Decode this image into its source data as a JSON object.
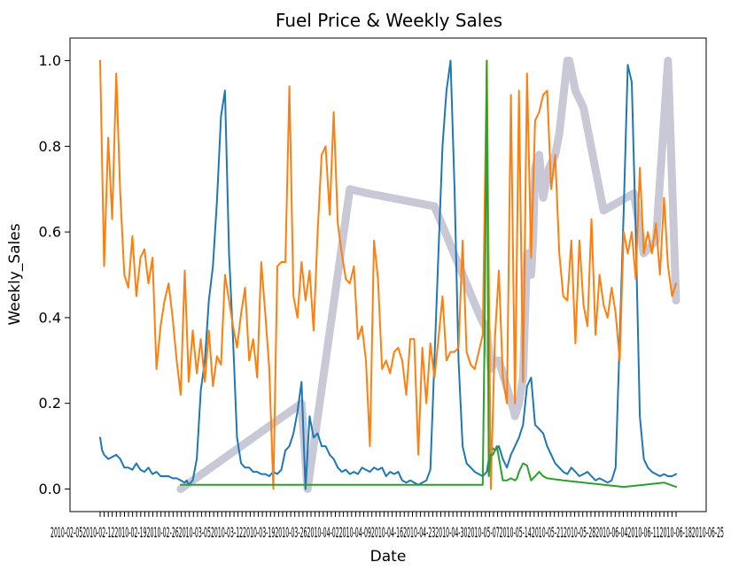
{
  "chart_data": {
    "type": "line",
    "title": "Fuel Price & Weekly Sales",
    "xlabel": "Date",
    "ylabel": "Weekly_Sales",
    "ylim": [
      -0.03,
      1.05
    ],
    "yticks": [
      "0.0",
      "0.2",
      "0.4",
      "0.6",
      "0.8",
      "1.0"
    ],
    "x_tick_count": 143,
    "x_tick_label_text": "2010-02-052010-02-122010-02-192010-02-262010-03-052010-03-122010-03-192010-03-262010-04-022010-04-092010-04-162010-04-232010-04-302010-05-072010-05-142010-05-212010-05-282010-06-042010-06-112010-06-182010-06-25",
    "legend": "none",
    "grid": false,
    "series": [
      {
        "color": "#1f77b4",
        "linewidth": 2,
        "x": [
          0,
          1,
          2,
          4,
          6,
          8,
          10,
          12,
          14,
          16,
          18,
          20,
          22,
          24,
          26,
          28,
          30,
          32,
          34,
          36,
          38,
          40,
          42,
          43,
          44,
          45,
          46,
          48,
          50,
          52,
          54,
          56,
          58,
          60,
          62,
          64,
          66,
          68,
          70,
          72,
          74,
          76,
          78,
          80,
          82,
          84,
          86,
          88,
          90,
          92,
          94,
          96,
          98,
          100,
          102,
          104,
          106,
          108,
          110,
          112,
          114,
          116,
          118,
          120,
          122,
          124,
          126,
          128,
          130,
          132,
          134,
          136,
          138,
          140,
          142,
          144,
          146,
          148,
          150,
          152,
          154,
          156,
          158,
          160,
          162,
          164,
          166,
          168,
          170,
          172,
          174,
          176,
          178,
          180,
          182,
          184,
          186,
          188,
          190,
          192,
          194,
          196,
          198,
          200,
          202,
          204,
          206,
          208,
          210,
          212,
          214,
          216,
          218,
          220,
          222,
          224,
          226,
          228,
          230,
          232,
          234,
          236,
          238,
          240,
          242,
          244,
          246,
          248,
          250,
          252,
          254,
          256,
          258,
          260,
          262,
          264,
          266,
          268,
          270,
          272,
          274,
          276,
          278,
          280,
          282,
          284,
          286
        ],
        "y": [
          0.12,
          0.09,
          0.08,
          0.07,
          0.075,
          0.08,
          0.07,
          0.05,
          0.05,
          0.045,
          0.06,
          0.045,
          0.04,
          0.05,
          0.035,
          0.04,
          0.03,
          0.03,
          0.03,
          0.025,
          0.025,
          0.02,
          0.015,
          0.02,
          0.01,
          0.015,
          0.02,
          0.07,
          0.23,
          0.3,
          0.44,
          0.52,
          0.67,
          0.87,
          0.93,
          0.55,
          0.35,
          0.12,
          0.06,
          0.05,
          0.05,
          0.04,
          0.04,
          0.035,
          0.035,
          0.03,
          0.04,
          0.035,
          0.045,
          0.09,
          0.1,
          0.13,
          0.18,
          0.25,
          0.0,
          0.17,
          0.12,
          0.13,
          0.1,
          0.1,
          0.08,
          0.07,
          0.05,
          0.04,
          0.045,
          0.035,
          0.04,
          0.035,
          0.05,
          0.045,
          0.04,
          0.05,
          0.045,
          0.05,
          0.03,
          0.04,
          0.035,
          0.04,
          0.02,
          0.015,
          0.02,
          0.015,
          0.01,
          0.015,
          0.02,
          0.045,
          0.3,
          0.55,
          0.8,
          0.93,
          1.0,
          0.7,
          0.3,
          0.1,
          0.06,
          0.05,
          0.04,
          0.035,
          0.03,
          0.04,
          0.1,
          0.09,
          0.1,
          0.07,
          0.05,
          0.08,
          0.1,
          0.12,
          0.15,
          0.24,
          0.26,
          0.15,
          0.14,
          0.13,
          0.1,
          0.08,
          0.06,
          0.05,
          0.04,
          0.035,
          0.05,
          0.04,
          0.03,
          0.035,
          0.04,
          0.03,
          0.02,
          0.025,
          0.02,
          0.015,
          0.02,
          0.05,
          0.35,
          0.65,
          0.99,
          0.95,
          0.6,
          0.17,
          0.07,
          0.05,
          0.04,
          0.035,
          0.03,
          0.035,
          0.03,
          0.03,
          0.035
        ]
      },
      {
        "color": "#ff7f0e",
        "linewidth": 2,
        "x": [
          0,
          2,
          4,
          6,
          8,
          10,
          12,
          14,
          16,
          18,
          20,
          22,
          24,
          26,
          28,
          30,
          32,
          34,
          36,
          38,
          40,
          42,
          44,
          46,
          48,
          50,
          52,
          54,
          56,
          58,
          60,
          62,
          64,
          66,
          68,
          70,
          72,
          74,
          76,
          78,
          80,
          82,
          84,
          86,
          88,
          90,
          92,
          94,
          96,
          98,
          100,
          102,
          104,
          106,
          108,
          110,
          112,
          114,
          116,
          118,
          120,
          122,
          124,
          126,
          128,
          130,
          132,
          134,
          136,
          138,
          140,
          142,
          144,
          146,
          148,
          150,
          152,
          154,
          156,
          158,
          160,
          162,
          164,
          166,
          168,
          170,
          172,
          174,
          176,
          178,
          180,
          182,
          184,
          186,
          188,
          190,
          192,
          194,
          196,
          198,
          200,
          202,
          204,
          206,
          208,
          210,
          212,
          214,
          216,
          218,
          220,
          222,
          224,
          226,
          228,
          230,
          232,
          234,
          236,
          238,
          240,
          242,
          244,
          246,
          248,
          250,
          252,
          254,
          256,
          258,
          260,
          262,
          264,
          266,
          268,
          270,
          272,
          274,
          276,
          278,
          280,
          282,
          284,
          286
        ],
        "y": [
          1.0,
          0.52,
          0.82,
          0.63,
          0.97,
          0.69,
          0.5,
          0.47,
          0.59,
          0.45,
          0.54,
          0.56,
          0.48,
          0.54,
          0.28,
          0.38,
          0.44,
          0.48,
          0.4,
          0.3,
          0.22,
          0.51,
          0.25,
          0.37,
          0.27,
          0.35,
          0.25,
          0.37,
          0.24,
          0.31,
          0.29,
          0.5,
          0.44,
          0.38,
          0.33,
          0.41,
          0.47,
          0.3,
          0.35,
          0.26,
          0.53,
          0.41,
          0.28,
          0.0,
          0.52,
          0.53,
          0.53,
          0.94,
          0.45,
          0.4,
          0.53,
          0.44,
          0.51,
          0.37,
          0.6,
          0.78,
          0.8,
          0.64,
          0.88,
          0.62,
          0.55,
          0.49,
          0.48,
          0.52,
          0.35,
          0.38,
          0.3,
          0.1,
          0.58,
          0.49,
          0.28,
          0.3,
          0.27,
          0.32,
          0.33,
          0.3,
          0.22,
          0.35,
          0.35,
          0.08,
          0.33,
          0.2,
          0.34,
          0.26,
          0.35,
          0.45,
          0.3,
          0.32,
          0.32,
          0.33,
          0.58,
          0.32,
          0.29,
          0.28,
          0.32,
          0.36,
          1.0,
          0.0,
          0.35,
          0.51,
          0.26,
          0.2,
          0.92,
          0.2,
          0.93,
          0.25,
          0.97,
          0.54,
          0.86,
          0.88,
          0.92,
          0.93,
          0.7,
          0.78,
          0.55,
          0.45,
          0.44,
          0.58,
          0.34,
          0.58,
          0.43,
          0.38,
          0.63,
          0.36,
          0.5,
          0.43,
          0.4,
          0.47,
          0.41,
          0.3,
          0.6,
          0.55,
          0.6,
          0.49,
          0.75,
          0.55,
          0.6,
          0.55,
          0.62,
          0.5,
          0.68,
          0.52,
          0.45,
          0.48
        ]
      },
      {
        "color": "#2ca02c",
        "linewidth": 2,
        "x": [
          40,
          190,
          191,
          192,
          193,
          194,
          195,
          197,
          200,
          202,
          204,
          206,
          207,
          208,
          210,
          212,
          214,
          216,
          218,
          220,
          222,
          230,
          240,
          260,
          270,
          280,
          286
        ],
        "y": [
          0.01,
          0.01,
          0.4,
          1.0,
          0.03,
          0.08,
          0.08,
          0.1,
          0.02,
          0.02,
          0.025,
          0.02,
          0.025,
          0.04,
          0.06,
          0.055,
          0.02,
          0.03,
          0.04,
          0.03,
          0.025,
          0.02,
          0.015,
          0.005,
          0.01,
          0.015,
          0.005
        ]
      },
      {
        "color": "#c8c8d6",
        "linewidth": 9,
        "x": [
          40,
          100,
          103,
          124,
          133,
          166,
          188,
          192,
          194,
          196,
          198,
          205,
          206,
          208,
          210,
          212,
          214,
          215,
          216,
          218,
          220,
          223,
          226,
          228,
          232,
          233,
          236,
          240,
          250,
          265,
          270,
          276,
          282,
          286
        ],
        "y": [
          0.0,
          0.2,
          0.0,
          0.7,
          0.69,
          0.66,
          0.41,
          0.37,
          0.28,
          0.3,
          0.3,
          0.19,
          0.17,
          0.2,
          0.26,
          0.55,
          0.5,
          0.58,
          0.75,
          0.78,
          0.68,
          0.75,
          0.78,
          0.83,
          1.0,
          1.0,
          0.93,
          0.89,
          0.65,
          0.69,
          0.55,
          0.58,
          1.0,
          0.44
        ]
      }
    ]
  }
}
